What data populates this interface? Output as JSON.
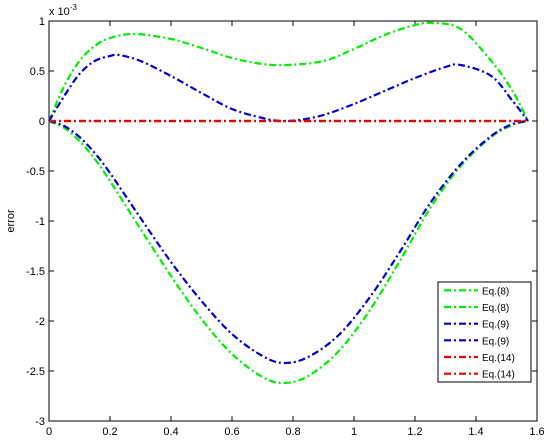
{
  "chart_data": {
    "type": "line",
    "title": "",
    "xlabel": "",
    "ylabel": "error",
    "y_exponent_label": "x 10",
    "y_exponent_power": "-3",
    "xlim": [
      0,
      1.6
    ],
    "ylim": [
      -3,
      1
    ],
    "x_ticks": [
      0,
      0.2,
      0.4,
      0.6,
      0.8,
      1,
      1.2,
      1.4,
      1.6
    ],
    "x_tick_labels": [
      "0",
      "0.2",
      "0.4",
      "0.6",
      "0.8",
      "1",
      "1.2",
      "1.4",
      "1.6"
    ],
    "y_ticks": [
      -3,
      -2.5,
      -2,
      -1.5,
      -1,
      -0.5,
      0,
      0.5,
      1
    ],
    "y_tick_labels": [
      "-3",
      "-2.5",
      "-2",
      "-1.5",
      "-1",
      "-0.5",
      "0",
      "0.5",
      "1"
    ],
    "grid": false,
    "legend_position": "bottom-right",
    "series": [
      {
        "name": "Eq.(8)",
        "color": "#00ee00",
        "dash": "dash-dot",
        "x": [
          0,
          0.05,
          0.1,
          0.15,
          0.2,
          0.28,
          0.4,
          0.5,
          0.6,
          0.7,
          0.78,
          0.9,
          1.0,
          1.1,
          1.2,
          1.26,
          1.35,
          1.45,
          1.52,
          1.5708
        ],
        "y": [
          0,
          0.35,
          0.6,
          0.75,
          0.83,
          0.87,
          0.82,
          0.73,
          0.63,
          0.57,
          0.56,
          0.6,
          0.72,
          0.86,
          0.96,
          0.98,
          0.92,
          0.6,
          0.3,
          0
        ]
      },
      {
        "name": "Eq.(8)",
        "color": "#00ee00",
        "dash": "dash-dot",
        "x": [
          0,
          0.05,
          0.1,
          0.15,
          0.2,
          0.3,
          0.4,
          0.5,
          0.6,
          0.7,
          0.77,
          0.85,
          0.95,
          1.05,
          1.15,
          1.25,
          1.35,
          1.45,
          1.52,
          1.5708
        ],
        "y": [
          0,
          -0.07,
          -0.2,
          -0.38,
          -0.6,
          -1.08,
          -1.55,
          -1.98,
          -2.33,
          -2.56,
          -2.62,
          -2.55,
          -2.3,
          -1.9,
          -1.4,
          -0.87,
          -0.45,
          -0.16,
          -0.04,
          0
        ]
      },
      {
        "name": "Eq.(9)",
        "color": "#0000cc",
        "dash": "dash-dot",
        "x": [
          0,
          0.05,
          0.1,
          0.15,
          0.2,
          0.23,
          0.3,
          0.4,
          0.5,
          0.6,
          0.7,
          0.76,
          0.82,
          0.9,
          1.0,
          1.1,
          1.2,
          1.3,
          1.35,
          1.45,
          1.52,
          1.5708
        ],
        "y": [
          0,
          0.25,
          0.47,
          0.6,
          0.65,
          0.66,
          0.6,
          0.45,
          0.28,
          0.12,
          0.03,
          0.0,
          0.01,
          0.06,
          0.17,
          0.3,
          0.43,
          0.54,
          0.56,
          0.45,
          0.2,
          0
        ]
      },
      {
        "name": "Eq.(9)",
        "color": "#0000cc",
        "dash": "dash-dot",
        "x": [
          0,
          0.05,
          0.1,
          0.15,
          0.2,
          0.3,
          0.4,
          0.5,
          0.6,
          0.7,
          0.77,
          0.85,
          0.95,
          1.05,
          1.15,
          1.25,
          1.35,
          1.45,
          1.52,
          1.5708
        ],
        "y": [
          0,
          -0.05,
          -0.16,
          -0.32,
          -0.52,
          -0.97,
          -1.41,
          -1.8,
          -2.13,
          -2.35,
          -2.42,
          -2.36,
          -2.14,
          -1.77,
          -1.31,
          -0.82,
          -0.43,
          -0.15,
          -0.03,
          0
        ]
      },
      {
        "name": "Eq.(14)",
        "color": "#ee0000",
        "dash": "dash-dot",
        "x": [
          0,
          0.4,
          0.8,
          1.2,
          1.5708
        ],
        "y": [
          0,
          0,
          0,
          0,
          0
        ]
      },
      {
        "name": "Eq.(14)",
        "color": "#ee0000",
        "dash": "dash-dot",
        "x": [
          0,
          0.4,
          0.8,
          1.2,
          1.5708
        ],
        "y": [
          0,
          0,
          0,
          0,
          0
        ]
      }
    ]
  }
}
